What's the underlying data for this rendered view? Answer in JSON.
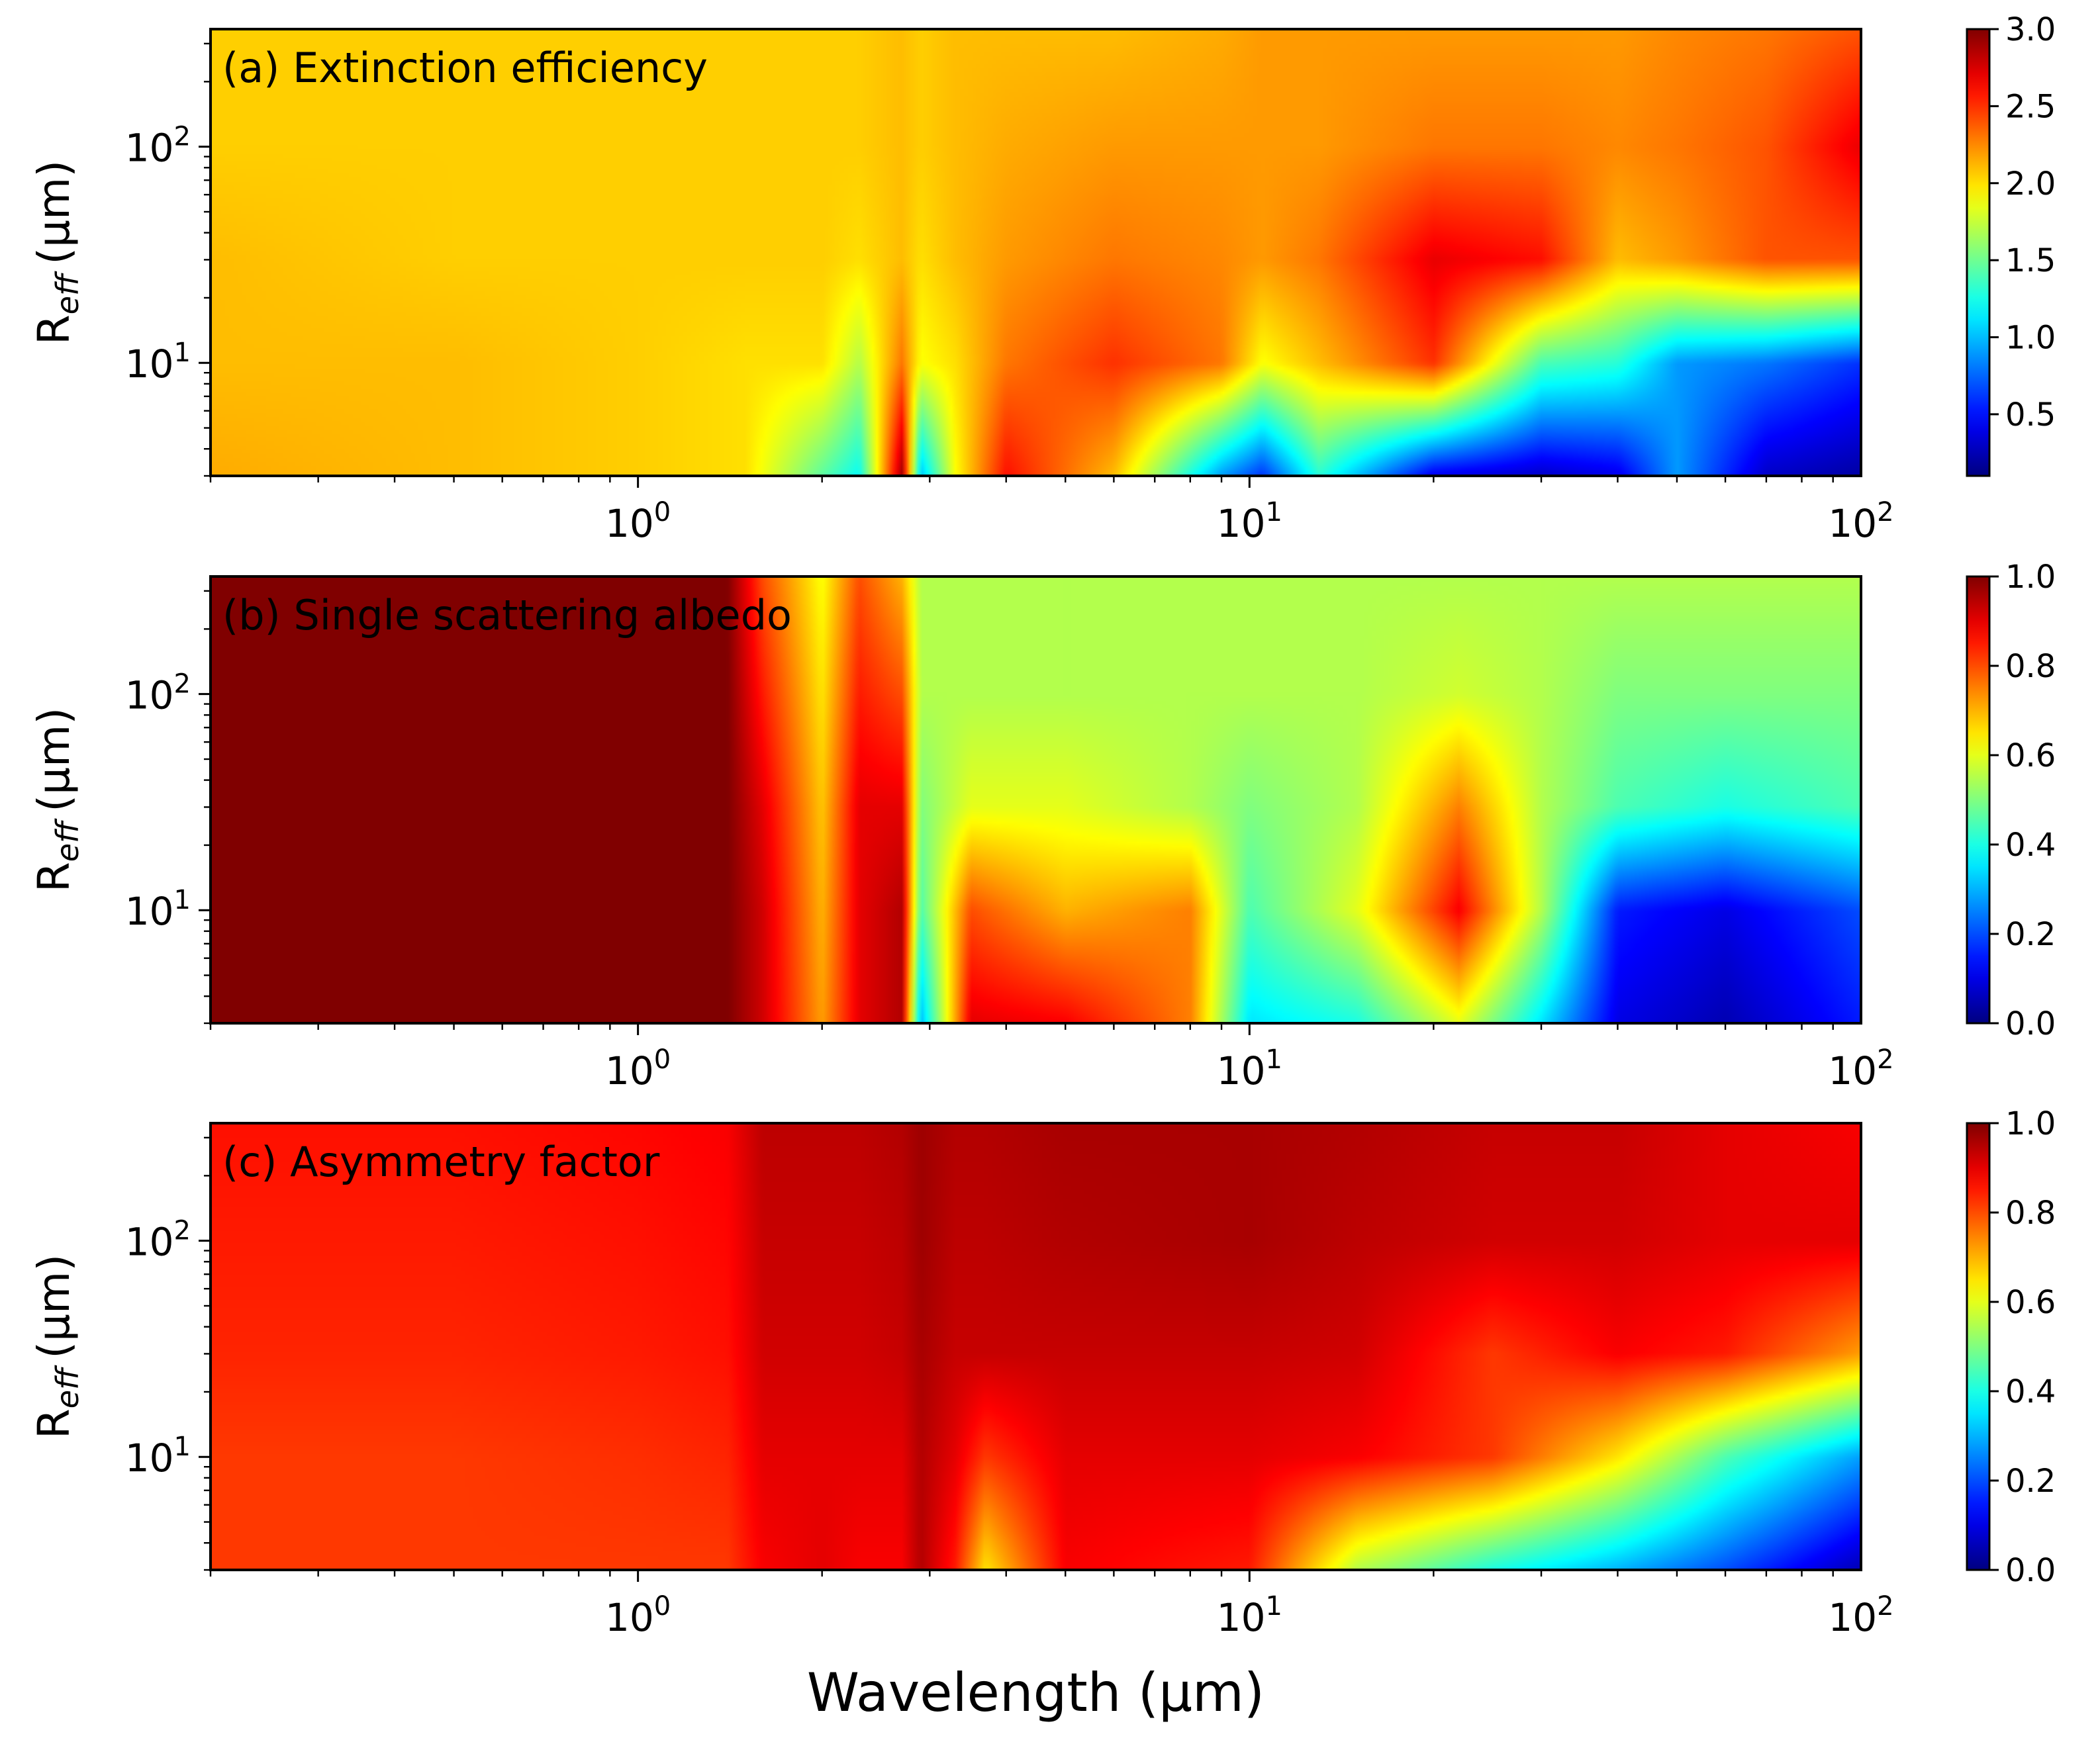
{
  "chart_data": [
    {
      "type": "heatmap",
      "title": "(a) Extinction efficiency",
      "xlabel": "",
      "ylabel_main": "R",
      "ylabel_sub": "eff",
      "ylabel_unit": "(μm)",
      "xscale": "log",
      "yscale": "log",
      "xlim": [
        0.2,
        100
      ],
      "ylim": [
        3,
        350
      ],
      "x_ticks": [
        {
          "base": "10",
          "exp": "0",
          "value": 1
        },
        {
          "base": "10",
          "exp": "1",
          "value": 10
        },
        {
          "base": "10",
          "exp": "2",
          "value": 100
        }
      ],
      "y_ticks": [
        {
          "base": "10",
          "exp": "1",
          "value": 10
        },
        {
          "base": "10",
          "exp": "2",
          "value": 100
        }
      ],
      "colormap": "jet",
      "colorbar": {
        "min": 0.1,
        "max": 3.0,
        "ticks": [
          "0.5",
          "1.0",
          "1.5",
          "2.0",
          "2.5",
          "3.0"
        ],
        "tick_values": [
          0.5,
          1.0,
          1.5,
          2.0,
          2.5,
          3.0
        ]
      },
      "x_samples": [
        0.2,
        0.5,
        1.0,
        1.5,
        2.0,
        2.3,
        2.7,
        2.9,
        3.3,
        4.0,
        6.0,
        9.0,
        10.5,
        13,
        20,
        30,
        40,
        50,
        70,
        100
      ],
      "y_samples": [
        3,
        10,
        30,
        100,
        350
      ],
      "z": [
        [
          2.15,
          2.1,
          2.05,
          2.0,
          1.45,
          1.2,
          2.9,
          1.0,
          1.9,
          2.6,
          2.1,
          0.9,
          0.6,
          1.3,
          0.4,
          0.3,
          0.4,
          0.9,
          0.3,
          0.2
        ],
        [
          2.1,
          2.1,
          2.05,
          2.0,
          2.0,
          1.7,
          2.3,
          1.9,
          2.0,
          2.3,
          2.5,
          2.3,
          1.9,
          2.1,
          2.5,
          1.4,
          1.3,
          0.9,
          0.8,
          0.6
        ],
        [
          2.1,
          2.05,
          2.05,
          2.05,
          2.05,
          2.0,
          2.1,
          2.0,
          2.1,
          2.2,
          2.3,
          2.25,
          2.2,
          2.3,
          2.7,
          2.6,
          2.1,
          2.2,
          2.4,
          2.4
        ],
        [
          2.05,
          2.05,
          2.05,
          2.05,
          2.05,
          2.05,
          2.1,
          2.05,
          2.1,
          2.15,
          2.2,
          2.2,
          2.2,
          2.2,
          2.3,
          2.3,
          2.25,
          2.3,
          2.4,
          2.7
        ],
        [
          2.05,
          2.05,
          2.05,
          2.05,
          2.05,
          2.05,
          2.1,
          2.05,
          2.1,
          2.1,
          2.1,
          2.15,
          2.2,
          2.2,
          2.2,
          2.2,
          2.2,
          2.25,
          2.3,
          2.4
        ]
      ]
    },
    {
      "type": "heatmap",
      "title": "(b) Single scattering albedo",
      "xlabel": "",
      "ylabel_main": "R",
      "ylabel_sub": "eff",
      "ylabel_unit": "(μm)",
      "xscale": "log",
      "yscale": "log",
      "xlim": [
        0.2,
        100
      ],
      "ylim": [
        3,
        350
      ],
      "x_ticks": [
        {
          "base": "10",
          "exp": "0",
          "value": 1
        },
        {
          "base": "10",
          "exp": "1",
          "value": 10
        },
        {
          "base": "10",
          "exp": "2",
          "value": 100
        }
      ],
      "y_ticks": [
        {
          "base": "10",
          "exp": "1",
          "value": 10
        },
        {
          "base": "10",
          "exp": "2",
          "value": 100
        }
      ],
      "colormap": "jet",
      "colorbar": {
        "min": 0.0,
        "max": 1.0,
        "ticks": [
          "0.0",
          "0.2",
          "0.4",
          "0.6",
          "0.8",
          "1.0"
        ],
        "tick_values": [
          0.0,
          0.2,
          0.4,
          0.6,
          0.8,
          1.0
        ]
      },
      "x_samples": [
        0.2,
        0.5,
        1.0,
        1.4,
        1.6,
        2.0,
        2.3,
        2.7,
        2.9,
        3.5,
        5.0,
        8.0,
        10,
        15,
        22,
        30,
        40,
        60,
        100
      ],
      "y_samples": [
        3,
        10,
        30,
        100,
        350
      ],
      "z": [
        [
          1.0,
          1.0,
          1.0,
          1.0,
          0.92,
          0.72,
          0.9,
          0.95,
          0.3,
          0.9,
          0.88,
          0.75,
          0.35,
          0.4,
          0.6,
          0.35,
          0.1,
          0.05,
          0.15
        ],
        [
          1.0,
          1.0,
          1.0,
          1.0,
          0.92,
          0.7,
          0.9,
          0.95,
          0.45,
          0.8,
          0.7,
          0.75,
          0.45,
          0.6,
          0.88,
          0.55,
          0.15,
          0.1,
          0.2
        ],
        [
          1.0,
          1.0,
          1.0,
          1.0,
          0.9,
          0.68,
          0.9,
          0.9,
          0.5,
          0.6,
          0.6,
          0.55,
          0.5,
          0.55,
          0.75,
          0.55,
          0.45,
          0.4,
          0.45
        ],
        [
          1.0,
          1.0,
          1.0,
          1.0,
          0.85,
          0.65,
          0.85,
          0.8,
          0.55,
          0.55,
          0.55,
          0.55,
          0.55,
          0.55,
          0.58,
          0.55,
          0.5,
          0.5,
          0.5
        ],
        [
          1.0,
          1.0,
          1.0,
          1.0,
          0.8,
          0.62,
          0.8,
          0.7,
          0.55,
          0.55,
          0.55,
          0.55,
          0.55,
          0.55,
          0.55,
          0.55,
          0.55,
          0.55,
          0.55
        ]
      ]
    },
    {
      "type": "heatmap",
      "title": "(c) Asymmetry factor",
      "xlabel": "Wavelength (μm)",
      "ylabel_main": "R",
      "ylabel_sub": "eff",
      "ylabel_unit": "(μm)",
      "xscale": "log",
      "yscale": "log",
      "xlim": [
        0.2,
        100
      ],
      "ylim": [
        3,
        350
      ],
      "x_ticks": [
        {
          "base": "10",
          "exp": "0",
          "value": 1
        },
        {
          "base": "10",
          "exp": "1",
          "value": 10
        },
        {
          "base": "10",
          "exp": "2",
          "value": 100
        }
      ],
      "y_ticks": [
        {
          "base": "10",
          "exp": "1",
          "value": 10
        },
        {
          "base": "10",
          "exp": "2",
          "value": 100
        }
      ],
      "colormap": "jet",
      "colorbar": {
        "min": 0.0,
        "max": 1.0,
        "ticks": [
          "0.0",
          "0.2",
          "0.4",
          "0.6",
          "0.8",
          "1.0"
        ],
        "tick_values": [
          0.0,
          0.2,
          0.4,
          0.6,
          0.8,
          1.0
        ]
      },
      "x_samples": [
        0.2,
        0.5,
        1.0,
        1.4,
        1.6,
        2.0,
        2.3,
        2.7,
        2.9,
        3.3,
        3.7,
        5.0,
        10,
        15,
        25,
        40,
        60,
        100
      ],
      "y_samples": [
        3,
        10,
        30,
        100,
        350
      ],
      "z": [
        [
          0.82,
          0.82,
          0.82,
          0.82,
          0.88,
          0.9,
          0.88,
          0.88,
          0.95,
          0.85,
          0.65,
          0.88,
          0.85,
          0.55,
          0.4,
          0.3,
          0.2,
          0.05
        ],
        [
          0.82,
          0.82,
          0.83,
          0.84,
          0.9,
          0.9,
          0.9,
          0.9,
          0.95,
          0.9,
          0.82,
          0.9,
          0.9,
          0.88,
          0.82,
          0.65,
          0.45,
          0.28
        ],
        [
          0.84,
          0.84,
          0.85,
          0.86,
          0.92,
          0.92,
          0.92,
          0.93,
          0.96,
          0.93,
          0.93,
          0.93,
          0.93,
          0.92,
          0.82,
          0.88,
          0.85,
          0.72
        ],
        [
          0.85,
          0.85,
          0.86,
          0.87,
          0.93,
          0.93,
          0.93,
          0.94,
          0.97,
          0.94,
          0.94,
          0.95,
          0.96,
          0.94,
          0.92,
          0.92,
          0.9,
          0.9
        ],
        [
          0.86,
          0.86,
          0.87,
          0.88,
          0.94,
          0.94,
          0.94,
          0.95,
          0.97,
          0.95,
          0.95,
          0.96,
          0.96,
          0.95,
          0.93,
          0.93,
          0.9,
          0.88
        ]
      ]
    }
  ]
}
